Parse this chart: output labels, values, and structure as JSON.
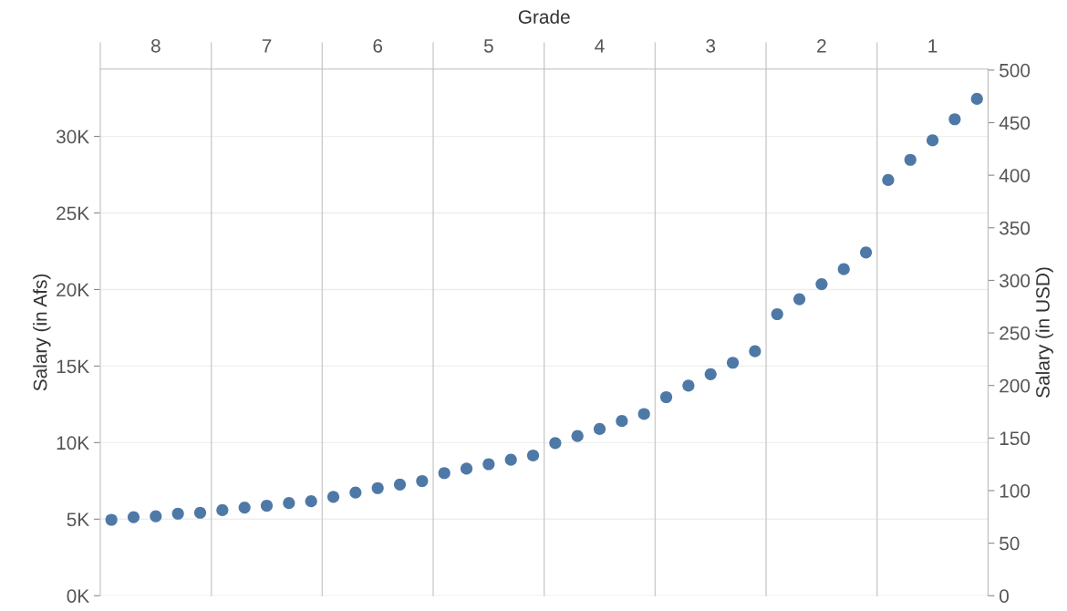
{
  "chart_data": {
    "type": "scatter",
    "xlabel": "Grade",
    "ylabel": "Salary (in Afs)",
    "y2label": "Salary (in USD)",
    "categories": [
      "8",
      "7",
      "6",
      "5",
      "4",
      "3",
      "2",
      "1"
    ],
    "series": [
      {
        "color": "#4e79a7",
        "values": [
          4960,
          5590,
          6460,
          8010,
          9970,
          12970,
          18390,
          27150
        ]
      },
      {
        "color": "#4e79a7",
        "values": [
          5130,
          5760,
          6740,
          8300,
          10430,
          13720,
          19370,
          28470
        ]
      },
      {
        "color": "#4e79a7",
        "values": [
          5190,
          5880,
          7030,
          8590,
          10890,
          14470,
          20350,
          29740
        ]
      },
      {
        "color": "#4e79a7",
        "values": [
          5360,
          6050,
          7260,
          8880,
          11410,
          15220,
          21330,
          31120
        ]
      },
      {
        "color": "#4e79a7",
        "values": [
          5420,
          6170,
          7490,
          9160,
          11870,
          15970,
          22420,
          32450
        ]
      }
    ],
    "ylim": [
      0,
      34400
    ],
    "yticks": [
      {
        "value": 0,
        "label": "0K"
      },
      {
        "value": 5000,
        "label": "5K"
      },
      {
        "value": 10000,
        "label": "10K"
      },
      {
        "value": 15000,
        "label": "15K"
      },
      {
        "value": 20000,
        "label": "20K"
      },
      {
        "value": 25000,
        "label": "25K"
      },
      {
        "value": 30000,
        "label": "30K"
      }
    ],
    "y2lim": [
      0,
      501
    ],
    "y2ticks": [
      0,
      50,
      100,
      150,
      200,
      250,
      300,
      350,
      400,
      450,
      500
    ],
    "grid": "y",
    "legend": false,
    "marker": "circle"
  }
}
